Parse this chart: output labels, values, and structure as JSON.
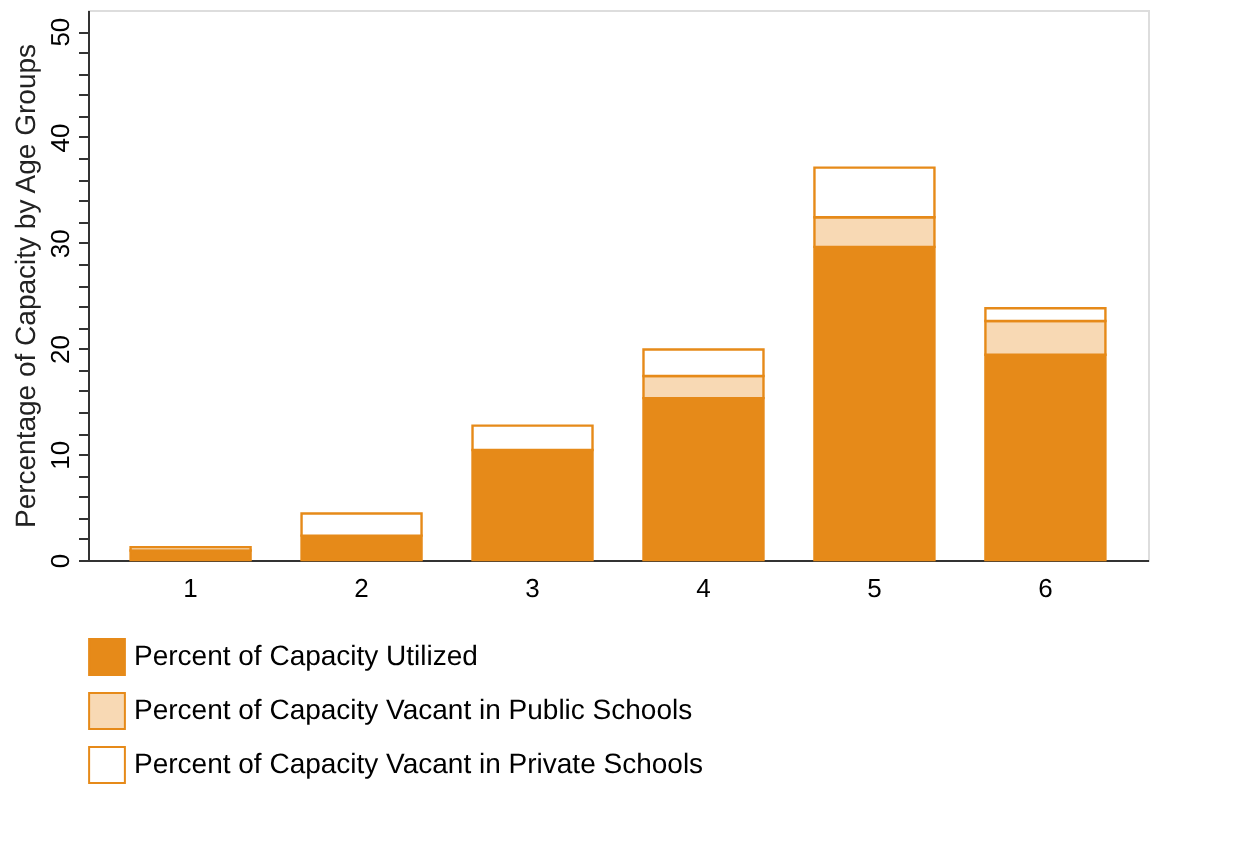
{
  "chart_data": {
    "type": "bar",
    "stacked": true,
    "ylabel": "Percentage of Capacity by Age Groups",
    "categories": [
      "1",
      "2",
      "3",
      "4",
      "5",
      "6"
    ],
    "series": [
      {
        "name": "Percent of Capacity Utilized",
        "color": "#e68a19",
        "values": [
          0.9,
          2.3,
          10.4,
          15.3,
          29.6,
          19.4
        ]
      },
      {
        "name": "Percent of Capacity Vacant in Public Schools",
        "color": "#f8d9b4",
        "values": [
          null,
          null,
          null,
          2.1,
          2.8,
          3.2
        ]
      },
      {
        "name": "Percent of Capacity Vacant in Private Schools",
        "color": "#ffffff",
        "values": [
          0.3,
          2.1,
          2.3,
          2.5,
          4.7,
          1.2
        ]
      }
    ],
    "ylim": [
      0,
      52
    ],
    "yticks": [
      0,
      {
        "value": 2,
        "label": null
      },
      {
        "value": 4,
        "label": null
      },
      {
        "value": 6,
        "label": null
      },
      {
        "value": 8,
        "label": null
      },
      10,
      {
        "value": 12,
        "label": null
      },
      {
        "value": 14,
        "label": null
      },
      {
        "value": 16,
        "label": null
      },
      {
        "value": 18,
        "label": null
      },
      20,
      {
        "value": 22,
        "label": null
      },
      {
        "value": 24,
        "label": null
      },
      {
        "value": 26,
        "label": null
      },
      {
        "value": 28,
        "label": null
      },
      30,
      {
        "value": 32,
        "label": null
      },
      {
        "value": 34,
        "label": null
      },
      {
        "value": 36,
        "label": null
      },
      {
        "value": 38,
        "label": null
      },
      40,
      {
        "value": 42,
        "label": null
      },
      {
        "value": 44,
        "label": null
      },
      {
        "value": 46,
        "label": null
      },
      {
        "value": 48,
        "label": null
      },
      50
    ],
    "grid": false,
    "legend": "bottom"
  }
}
